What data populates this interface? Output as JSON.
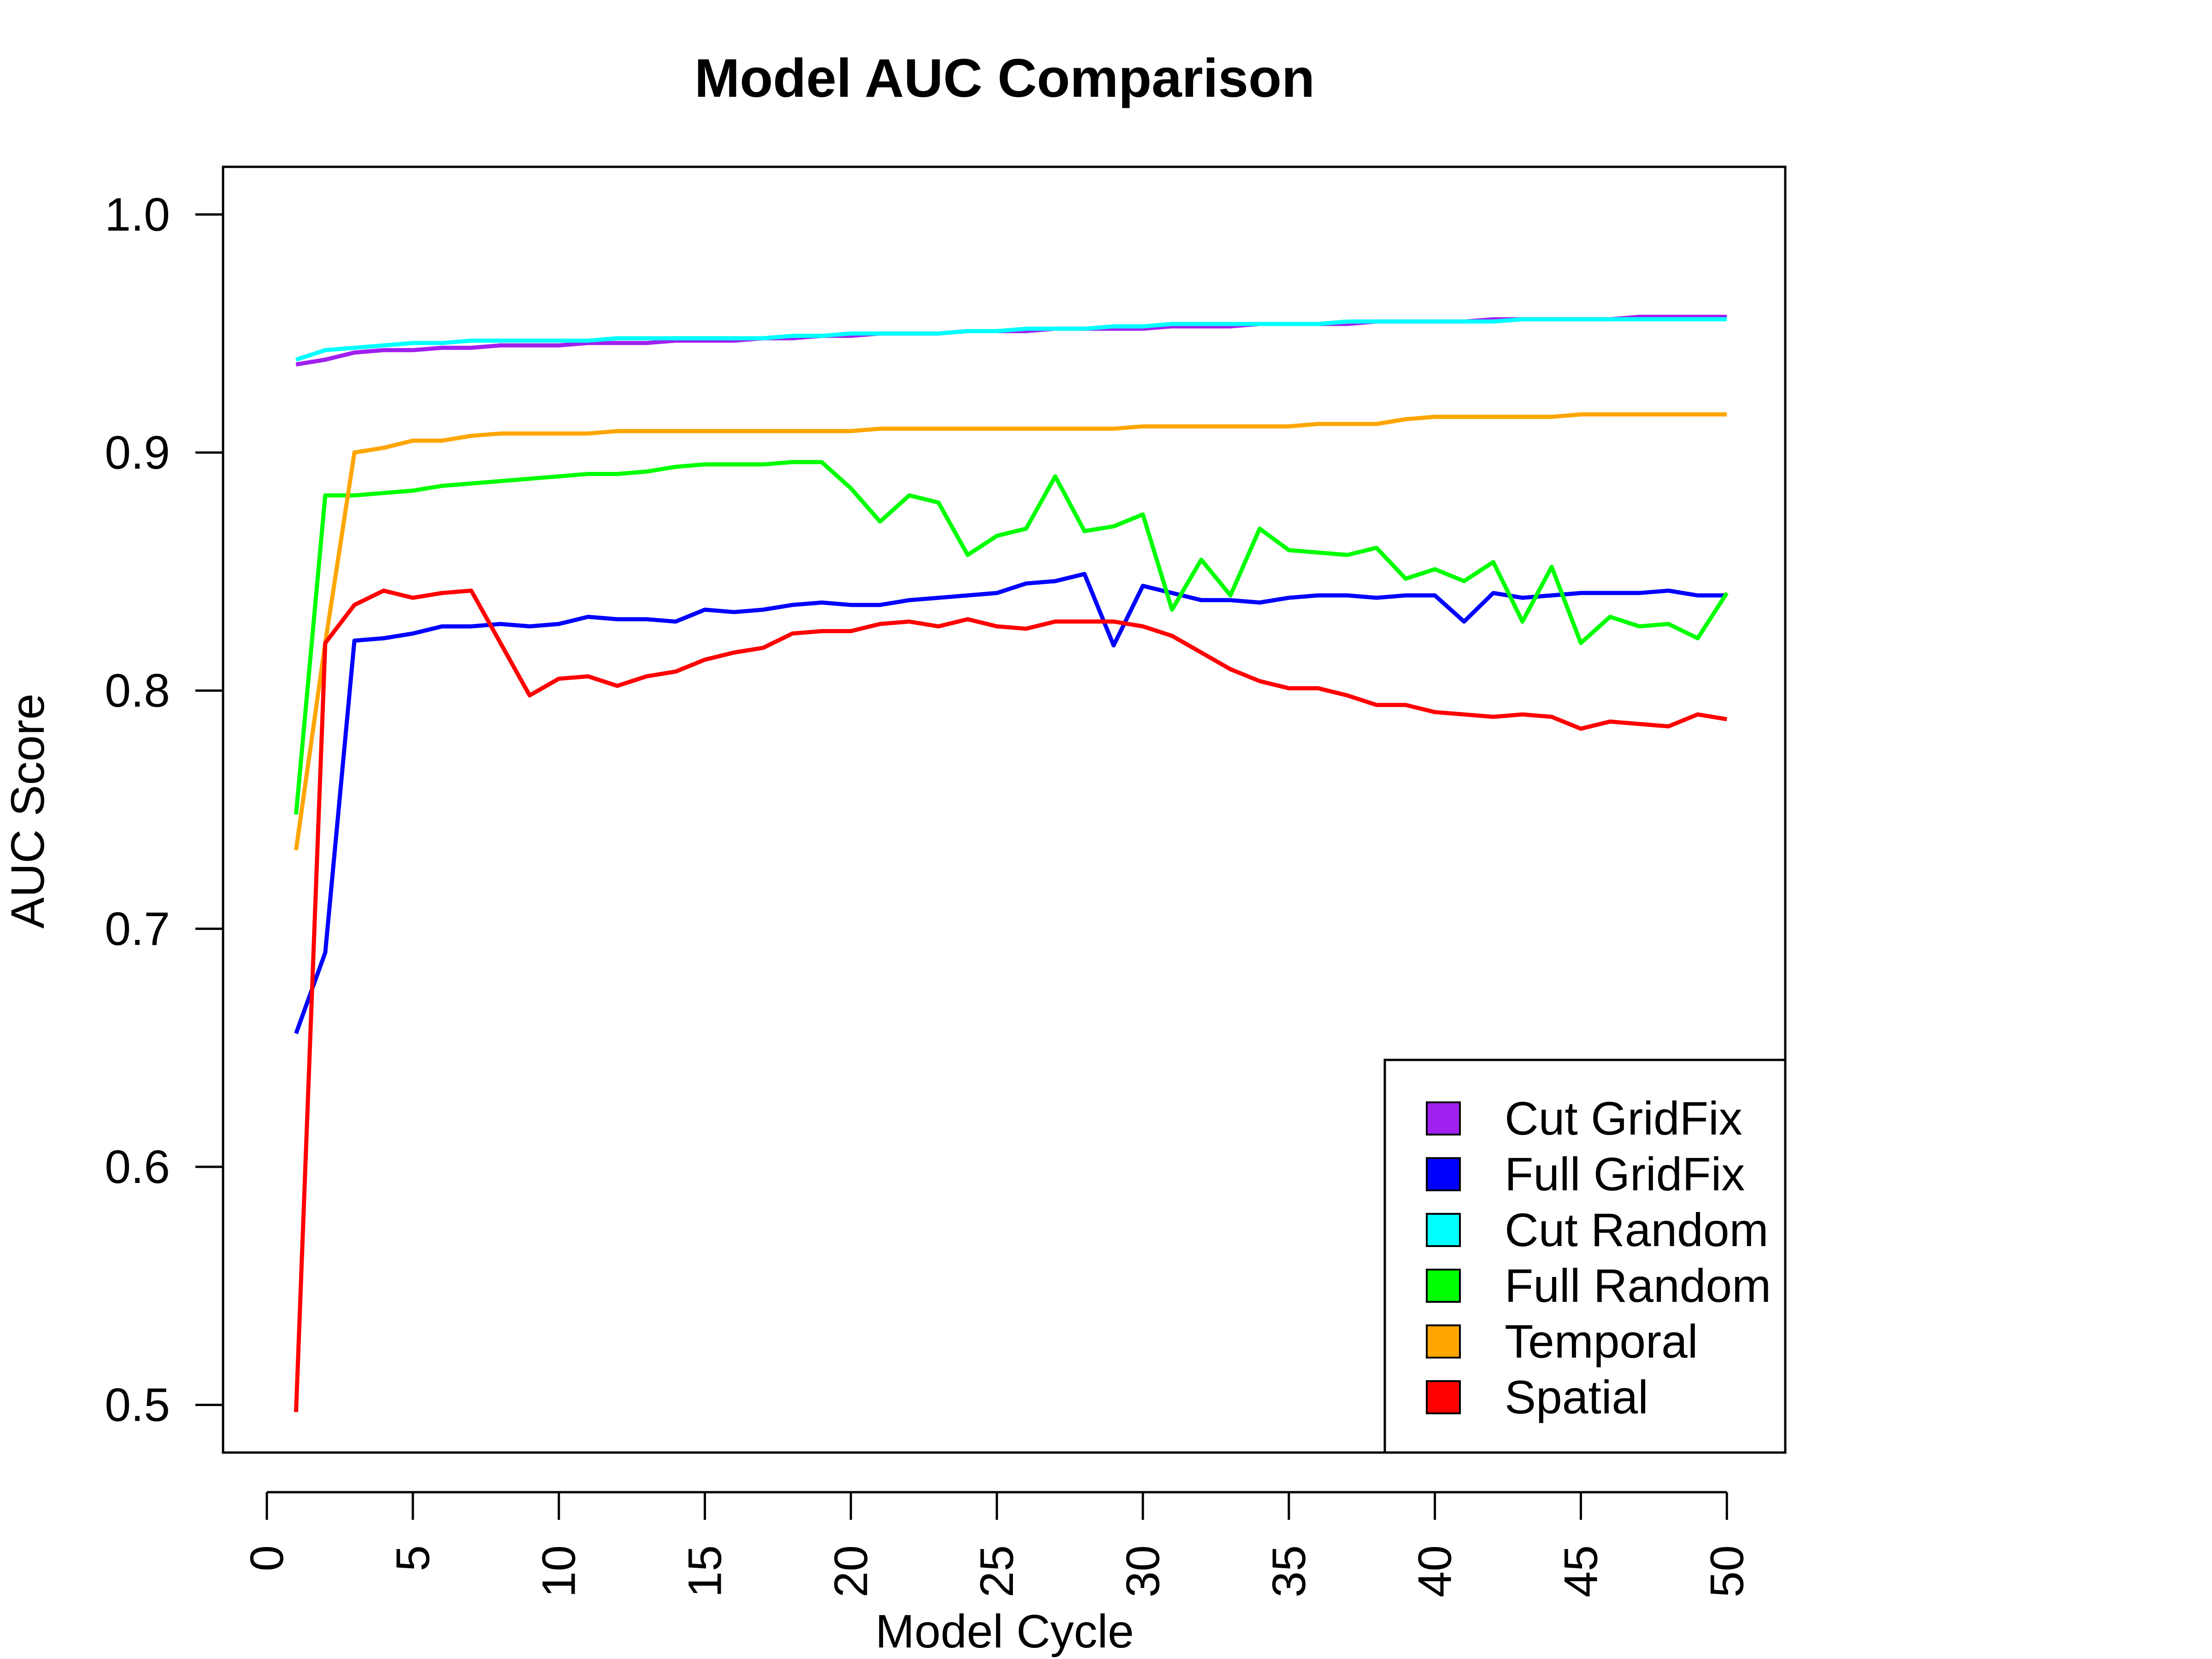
{
  "chart_data": {
    "type": "line",
    "title": "Model AUC Comparison",
    "xlabel": "Model Cycle",
    "ylabel": "AUC Score",
    "xlim": [
      -1.5,
      52
    ],
    "ylim": [
      0.48,
      1.02
    ],
    "x_ticks": [
      "0",
      "5",
      "10",
      "15",
      "20",
      "25",
      "30",
      "35",
      "40",
      "45",
      "50"
    ],
    "y_ticks": [
      "0.5",
      "0.6",
      "0.7",
      "0.8",
      "0.9",
      "1.0"
    ],
    "grid": false,
    "legend_position": "bottom-right",
    "x": [
      1,
      2,
      3,
      4,
      5,
      6,
      7,
      8,
      9,
      10,
      11,
      12,
      13,
      14,
      15,
      16,
      17,
      18,
      19,
      20,
      21,
      22,
      23,
      24,
      25,
      26,
      27,
      28,
      29,
      30,
      31,
      32,
      33,
      34,
      35,
      36,
      37,
      38,
      39,
      40,
      41,
      42,
      43,
      44,
      45,
      46,
      47,
      48,
      49,
      50
    ],
    "series": [
      {
        "name": "Cut GridFix",
        "color": "#A020F0",
        "values": [
          0.937,
          0.939,
          0.942,
          0.943,
          0.943,
          0.944,
          0.944,
          0.945,
          0.945,
          0.945,
          0.946,
          0.946,
          0.946,
          0.947,
          0.947,
          0.947,
          0.948,
          0.948,
          0.949,
          0.949,
          0.95,
          0.95,
          0.95,
          0.951,
          0.951,
          0.951,
          0.952,
          0.952,
          0.952,
          0.952,
          0.953,
          0.953,
          0.953,
          0.954,
          0.954,
          0.954,
          0.954,
          0.955,
          0.955,
          0.955,
          0.955,
          0.956,
          0.956,
          0.956,
          0.956,
          0.956,
          0.957,
          0.957,
          0.957,
          0.957
        ]
      },
      {
        "name": "Full GridFix",
        "color": "#0000FF",
        "values": [
          0.656,
          0.69,
          0.821,
          0.822,
          0.824,
          0.827,
          0.827,
          0.828,
          0.827,
          0.828,
          0.831,
          0.83,
          0.83,
          0.829,
          0.834,
          0.833,
          0.834,
          0.836,
          0.837,
          0.836,
          0.836,
          0.838,
          0.839,
          0.84,
          0.841,
          0.845,
          0.846,
          0.849,
          0.819,
          0.844,
          0.841,
          0.838,
          0.838,
          0.837,
          0.839,
          0.84,
          0.84,
          0.839,
          0.84,
          0.84,
          0.829,
          0.841,
          0.839,
          0.84,
          0.841,
          0.841,
          0.841,
          0.842,
          0.84,
          0.84
        ]
      },
      {
        "name": "Cut Random",
        "color": "#00FFFF",
        "values": [
          0.939,
          0.943,
          0.944,
          0.945,
          0.946,
          0.946,
          0.947,
          0.947,
          0.947,
          0.947,
          0.947,
          0.948,
          0.948,
          0.948,
          0.948,
          0.948,
          0.948,
          0.949,
          0.949,
          0.95,
          0.95,
          0.95,
          0.95,
          0.951,
          0.951,
          0.952,
          0.952,
          0.952,
          0.953,
          0.953,
          0.954,
          0.954,
          0.954,
          0.954,
          0.954,
          0.954,
          0.955,
          0.955,
          0.955,
          0.955,
          0.955,
          0.955,
          0.956,
          0.956,
          0.956,
          0.956,
          0.956,
          0.956,
          0.956,
          0.956
        ]
      },
      {
        "name": "Full Random",
        "color": "#00FF00",
        "values": [
          0.748,
          0.882,
          0.882,
          0.883,
          0.884,
          0.886,
          0.887,
          0.888,
          0.889,
          0.89,
          0.891,
          0.891,
          0.892,
          0.894,
          0.895,
          0.895,
          0.895,
          0.896,
          0.896,
          0.885,
          0.871,
          0.882,
          0.879,
          0.857,
          0.865,
          0.868,
          0.89,
          0.867,
          0.869,
          0.874,
          0.834,
          0.855,
          0.84,
          0.868,
          0.859,
          0.858,
          0.857,
          0.86,
          0.847,
          0.851,
          0.846,
          0.854,
          0.829,
          0.852,
          0.82,
          0.831,
          0.827,
          0.828,
          0.822,
          0.841
        ]
      },
      {
        "name": "Temporal",
        "color": "#FFA500",
        "values": [
          0.733,
          0.82,
          0.9,
          0.902,
          0.905,
          0.905,
          0.907,
          0.908,
          0.908,
          0.908,
          0.908,
          0.909,
          0.909,
          0.909,
          0.909,
          0.909,
          0.909,
          0.909,
          0.909,
          0.909,
          0.91,
          0.91,
          0.91,
          0.91,
          0.91,
          0.91,
          0.91,
          0.91,
          0.91,
          0.911,
          0.911,
          0.911,
          0.911,
          0.911,
          0.911,
          0.912,
          0.912,
          0.912,
          0.914,
          0.915,
          0.915,
          0.915,
          0.915,
          0.915,
          0.916,
          0.916,
          0.916,
          0.916,
          0.916,
          0.916
        ]
      },
      {
        "name": "Spatial",
        "color": "#FF0000",
        "values": [
          0.497,
          0.82,
          0.836,
          0.842,
          0.839,
          0.841,
          0.842,
          0.82,
          0.798,
          0.805,
          0.806,
          0.802,
          0.806,
          0.808,
          0.813,
          0.816,
          0.818,
          0.824,
          0.825,
          0.825,
          0.828,
          0.829,
          0.827,
          0.83,
          0.827,
          0.826,
          0.829,
          0.829,
          0.829,
          0.827,
          0.823,
          0.816,
          0.809,
          0.804,
          0.801,
          0.801,
          0.798,
          0.794,
          0.794,
          0.791,
          0.79,
          0.789,
          0.79,
          0.789,
          0.784,
          0.787,
          0.786,
          0.785,
          0.79,
          0.788
        ]
      }
    ]
  }
}
